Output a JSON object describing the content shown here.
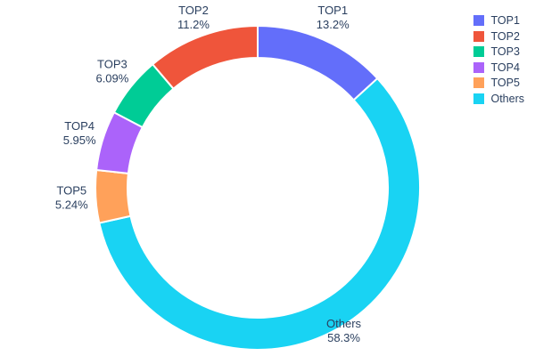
{
  "chart_data": {
    "type": "pie",
    "subtype": "donut",
    "hole_ratio": 0.8,
    "title": "",
    "labels": [
      "TOP1",
      "TOP2",
      "TOP3",
      "TOP4",
      "TOP5",
      "Others"
    ],
    "values": [
      13.2,
      11.2,
      6.09,
      5.95,
      5.24,
      58.3
    ],
    "value_labels": [
      "13.2%",
      "11.2%",
      "6.09%",
      "5.95%",
      "5.24%",
      "58.3%"
    ],
    "colors": [
      "#636efa",
      "#ef553b",
      "#00cc96",
      "#ab63fa",
      "#ffa15a",
      "#19d3f3"
    ],
    "draw_order": [
      "TOP1",
      "Others",
      "TOP5",
      "TOP4",
      "TOP3",
      "TOP2"
    ],
    "start_angle_deg": 0,
    "direction": "clockwise",
    "labels_position": "outside",
    "text_color": "#2a3f5f",
    "legend": {
      "position": "top-right",
      "entries": [
        "TOP1",
        "TOP2",
        "TOP3",
        "TOP4",
        "TOP5",
        "Others"
      ]
    }
  }
}
